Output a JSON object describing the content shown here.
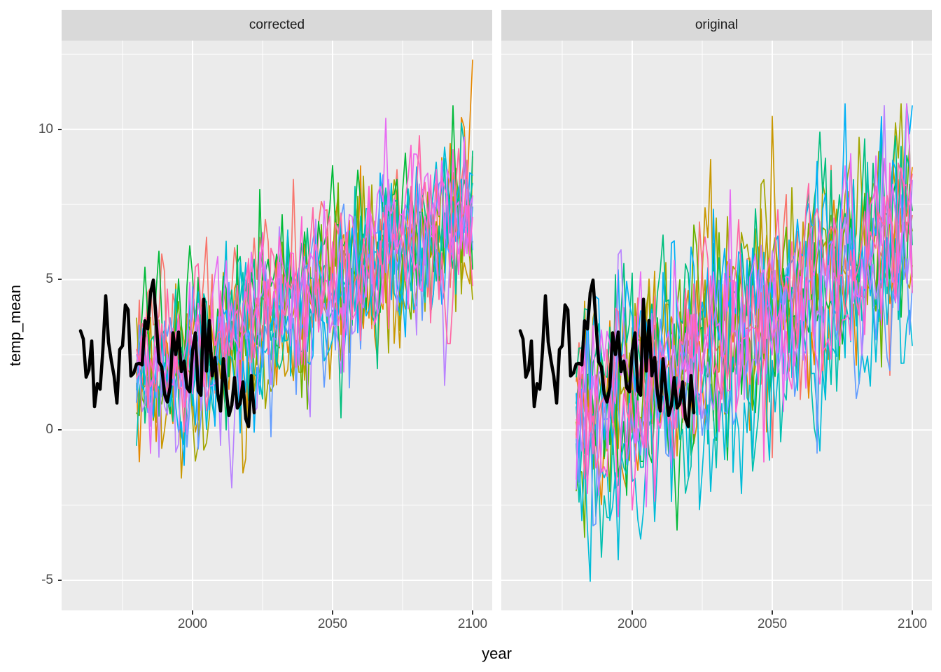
{
  "chart_data": {
    "type": "line",
    "title": "",
    "xlabel": "year",
    "ylabel": "temp_mean",
    "faceting": {
      "layout": "two panels side by side, shared axes",
      "strip_labels": [
        "corrected",
        "original"
      ]
    },
    "x_range": [
      1953.25,
      2107
    ],
    "y_range": [
      -6.0,
      12.95
    ],
    "x_ticks": [
      2000,
      2050,
      2100
    ],
    "x_minor_ticks": [
      1975,
      2025,
      2075
    ],
    "y_ticks": [
      10,
      5,
      0,
      -5
    ],
    "y_minor_ticks": [
      12.5,
      7.5,
      2.5,
      -2.5
    ],
    "grid": {
      "major_width": 2,
      "minor_width": 1,
      "color": "#FFFFFF"
    },
    "theme": {
      "panel_background": "#EBEBEB",
      "strip_background": "#D9D9D9",
      "strip_text_color": "#1A1A1A",
      "axis_text_color": "#4D4D4D",
      "axis_title_color": "#000000",
      "tick_mark_color": "#333333",
      "figure_background": "#FFFFFF"
    },
    "observed_series": {
      "name": "observed temperature (thick black line, same in both panels)",
      "color": "#000000",
      "stroke_width": 4.6,
      "year_start": 1960,
      "year_end": 2022,
      "mean_level": 2.1,
      "noise_sd": 0.95,
      "ar1": 0.5,
      "value_min": -0.6,
      "value_max": 5.35,
      "seed": 77
    },
    "ensemble": {
      "name": "climate model ensemble members (annual temp_mean trajectories)",
      "year_start": 1980,
      "year_end": 2100,
      "stroke_width": 1.7,
      "ar1": 0.25,
      "members": [
        {
          "color": "#F8766D",
          "seed": 3
        },
        {
          "color": "#E58700",
          "seed": 11
        },
        {
          "color": "#C99800",
          "seed": 7
        },
        {
          "color": "#A3A500",
          "seed": 5
        },
        {
          "color": "#6BB100",
          "seed": 13
        },
        {
          "color": "#00BA38",
          "seed": 21
        },
        {
          "color": "#00BF7D",
          "seed": 9
        },
        {
          "color": "#00C0AF",
          "seed": 17
        },
        {
          "color": "#00BCD8",
          "seed": 25
        },
        {
          "color": "#00B0F6",
          "seed": 2
        },
        {
          "color": "#619CFF",
          "seed": 19
        },
        {
          "color": "#B983FF",
          "seed": 8
        },
        {
          "color": "#E76BF3",
          "seed": 15
        },
        {
          "color": "#FD61D1",
          "seed": 4
        },
        {
          "color": "#FF67A4",
          "seed": 23
        }
      ],
      "panels": [
        {
          "label": "corrected",
          "start_level": 1.7,
          "end_level": 7.3,
          "noise_sd": 1.3,
          "member_spread": 0.55,
          "clamp_min": -3.8,
          "clamp_max": 12.3,
          "seed_offset": 100
        },
        {
          "label": "original",
          "start_level": 0.55,
          "end_level": 6.7,
          "noise_sd": 1.55,
          "member_spread": 0.7,
          "clamp_min": -5.25,
          "clamp_max": 10.85,
          "seed_offset": 200
        }
      ],
      "final_spike": {
        "note": "orange member rises sharply in the last years, to ~12 (corrected) / ~10.8 (original) at 2100",
        "member_index": 1,
        "boost": 4.3,
        "span_years": 8
      }
    }
  }
}
